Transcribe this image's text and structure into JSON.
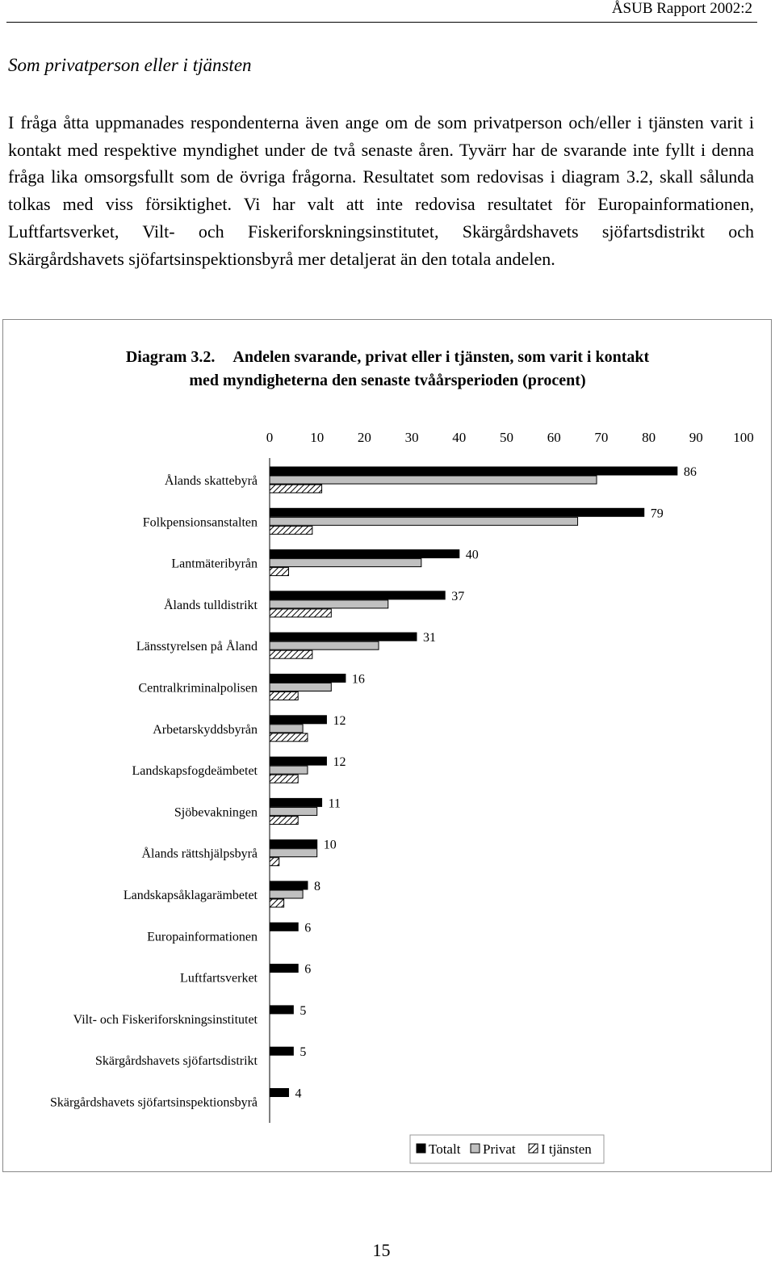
{
  "header": {
    "text": "ÅSUB Rapport 2002:2"
  },
  "section_title": "Som privatperson eller i tjänsten",
  "paragraph": "I fråga åtta uppmanades respondenterna även ange om de som privatperson och/eller i tjänsten varit i kontakt med respektive myndighet under de två senaste åren. Tyvärr har de svarande inte fyllt i denna fråga lika omsorgsfullt som de övriga frågorna. Resultatet som redovisas i diagram 3.2, skall sålunda tolkas med viss försiktighet. Vi har valt att inte redovisa resultatet för Europainformationen, Luftfartsverket, Vilt- och Fiskeriforskningsinstitutet, Skärgårdshavets sjöfartsdistrikt och Skärgårdshavets sjöfartsinspektionsbyrå mer detaljerat än den totala andelen.",
  "figure": {
    "caption_number": "Diagram 3.2.",
    "caption_line1": "Andelen svarande, privat eller i tjänsten, som varit i kontakt",
    "caption_line2": "med myndigheterna den senaste tvåårsperioden (procent)"
  },
  "chart_data": {
    "type": "bar",
    "orientation": "horizontal",
    "title": "",
    "xlim": [
      0,
      100
    ],
    "x_ticks": [
      0,
      10,
      20,
      30,
      40,
      50,
      60,
      70,
      80,
      90,
      100
    ],
    "x_axis_position": "top",
    "grid": false,
    "legend_position": "bottom-right",
    "categories": [
      "Ålands skattebyrå",
      "Folkpensionsanstalten",
      "Lantmäteribyrån",
      "Ålands tulldistrikt",
      "Länsstyrelsen på Åland",
      "Centralkriminalpolisen",
      "Arbetarskyddsbyrån",
      "Landskapsfogdeämbetet",
      "Sjöbevakningen",
      "Ålands rättshjälpsbyrå",
      "Landskapsåklagarämbetet",
      "Europainformationen",
      "Luftfartsverket",
      "Vilt- och Fiskeriforskningsinstitutet",
      "Skärgårdshavets sjöfartsdistrikt",
      "Skärgårdshavets sjöfartsinspektionsbyrå"
    ],
    "series": [
      {
        "name": "Totalt",
        "values": [
          86,
          79,
          40,
          37,
          31,
          16,
          12,
          12,
          11,
          10,
          8,
          6,
          6,
          5,
          5,
          4
        ],
        "labeled": true,
        "color": "#000000"
      },
      {
        "name": "Privat",
        "values": [
          69,
          65,
          32,
          25,
          23,
          13,
          7,
          8,
          10,
          10,
          7,
          null,
          null,
          null,
          null,
          null
        ],
        "color": "#c0c0c0"
      },
      {
        "name": "I tjänsten",
        "values": [
          11,
          9,
          4,
          13,
          9,
          6,
          8,
          6,
          6,
          2,
          3,
          null,
          null,
          null,
          null,
          null
        ],
        "pattern": "diagonal-hatch"
      }
    ]
  },
  "page_number": "15"
}
